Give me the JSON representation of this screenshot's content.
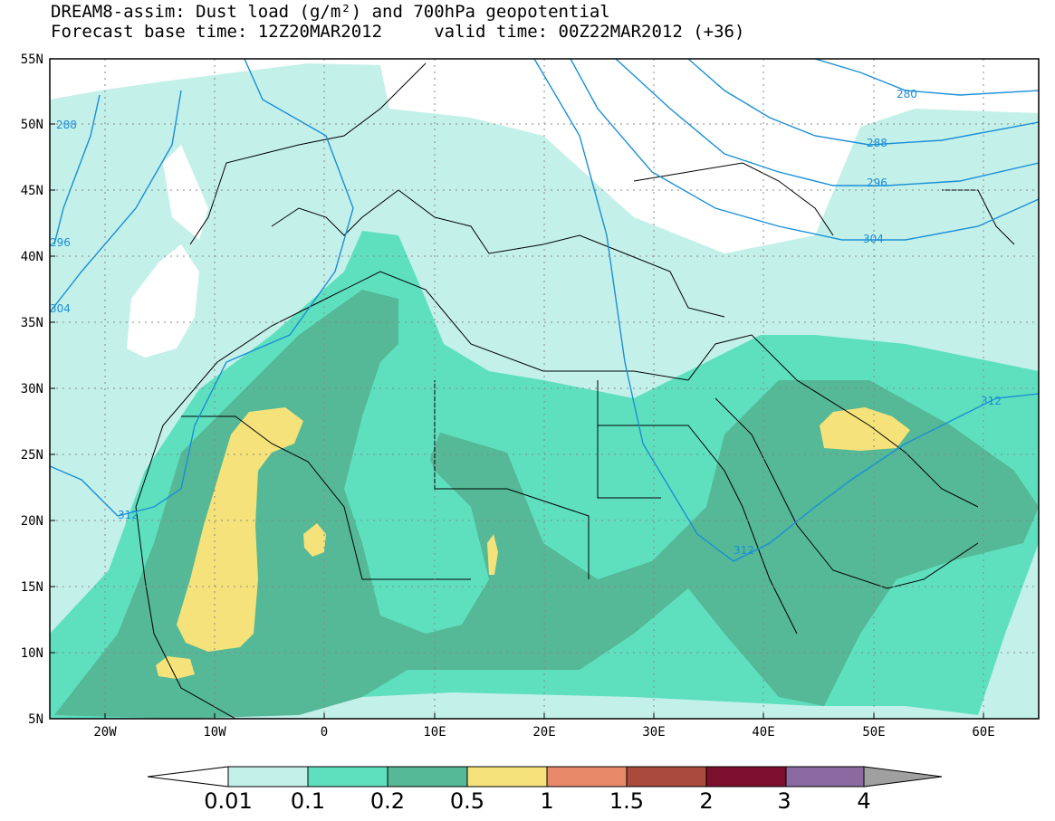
{
  "title_line1": "DREAM8-assim: Dust load (g/m²) and 700hPa geopotential",
  "title_line2": "Forecast base time: 12Z20MAR2012     valid time: 00Z22MAR2012 (+36)",
  "map": {
    "lon_range": [
      -25,
      65
    ],
    "lat_range": [
      5,
      55
    ],
    "lat_labels": [
      "5N",
      "10N",
      "15N",
      "20N",
      "25N",
      "30N",
      "35N",
      "40N",
      "45N",
      "50N",
      "55N"
    ],
    "lon_labels": [
      "20W",
      "10W",
      "0",
      "10E",
      "20E",
      "30E",
      "40E",
      "50E",
      "60E"
    ],
    "isoline_color": "#1a8fd6",
    "isoline_labels": [
      "288",
      "296",
      "304",
      "312",
      "312",
      "312",
      "280",
      "288",
      "296",
      "304",
      "312"
    ]
  },
  "colorbar": {
    "levels": [
      "0.01",
      "0.1",
      "0.2",
      "0.5",
      "1",
      "1.5",
      "2",
      "3",
      "4"
    ],
    "colors": [
      "#c4f0ea",
      "#5ee0bf",
      "#55b896",
      "#f5e27a",
      "#e8896a",
      "#a94a3d",
      "#7c0e2e",
      "#8a6aa0"
    ],
    "under_color": "#ffffff",
    "over_color": "#a0a0a0"
  }
}
